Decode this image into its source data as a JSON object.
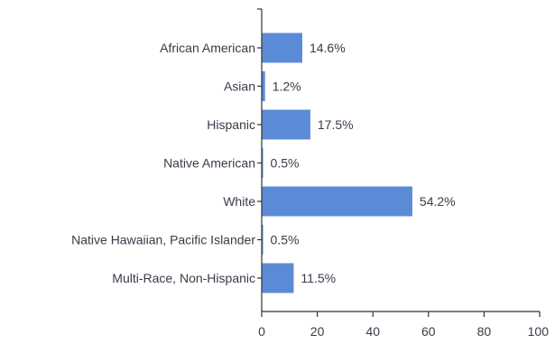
{
  "chart_data": {
    "type": "bar",
    "orientation": "horizontal",
    "title": "",
    "xlabel": "",
    "ylabel": "",
    "categories": [
      "African American",
      "Asian",
      "Hispanic",
      "Native American",
      "White",
      "Native Hawaiian, Pacific Islander",
      "Multi-Race, Non-Hispanic"
    ],
    "values": [
      14.6,
      1.2,
      17.5,
      0.5,
      54.2,
      0.5,
      11.5
    ],
    "value_labels": [
      "14.6%",
      "1.2%",
      "17.5%",
      "0.5%",
      "54.2%",
      "0.5%",
      "11.5%"
    ],
    "xlim": [
      0,
      100
    ],
    "xticks": [
      0,
      20,
      40,
      60,
      80,
      100
    ],
    "grid": false,
    "legend": "none",
    "bar_color": "#5b8bd6"
  }
}
